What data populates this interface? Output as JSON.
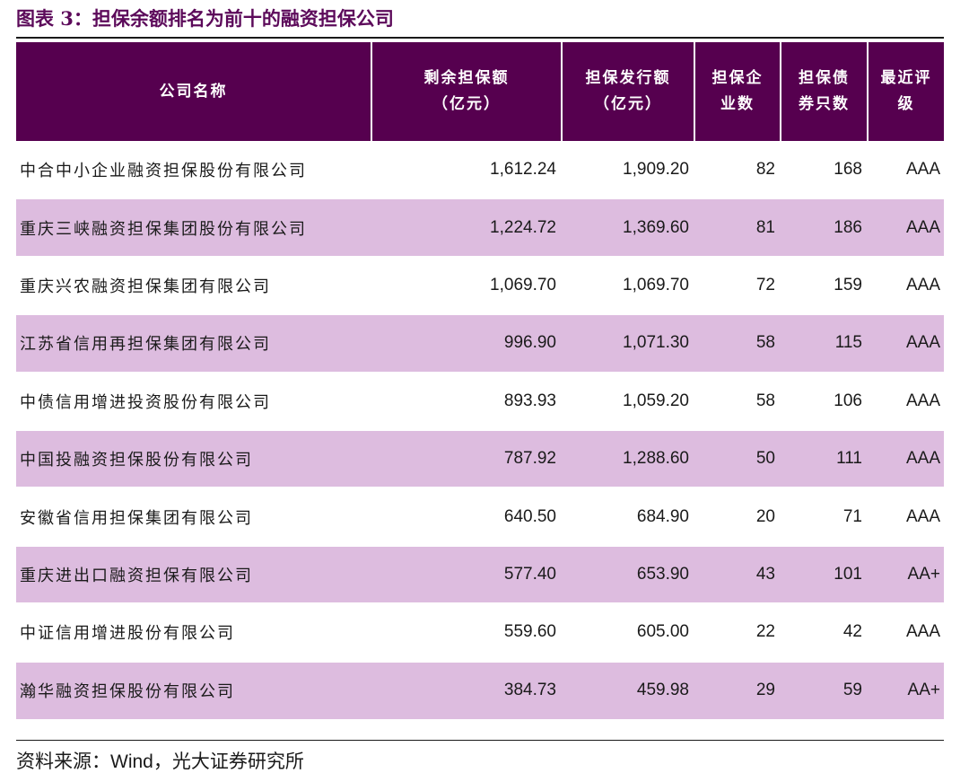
{
  "title": "图表 3：担保余额排名为前十的融资担保公司",
  "header": {
    "company": "公司名称",
    "remaining_l1": "剩余担保额",
    "remaining_l2": "（亿元）",
    "issued_l1": "担保发行额",
    "issued_l2": "（亿元）",
    "corp_count_l1": "担保企",
    "corp_count_l2": "业数",
    "bond_count_l1": "担保债",
    "bond_count_l2": "券只数",
    "rating_l1": "最近评",
    "rating_l2": "级"
  },
  "rows": [
    {
      "company": "中合中小企业融资担保股份有限公司",
      "remaining": "1,612.24",
      "issued": "1,909.20",
      "corp_count": "82",
      "bond_count": "168",
      "rating": "AAA"
    },
    {
      "company": "重庆三峡融资担保集团股份有限公司",
      "remaining": "1,224.72",
      "issued": "1,369.60",
      "corp_count": "81",
      "bond_count": "186",
      "rating": "AAA"
    },
    {
      "company": "重庆兴农融资担保集团有限公司",
      "remaining": "1,069.70",
      "issued": "1,069.70",
      "corp_count": "72",
      "bond_count": "159",
      "rating": "AAA"
    },
    {
      "company": "江苏省信用再担保集团有限公司",
      "remaining": "996.90",
      "issued": "1,071.30",
      "corp_count": "58",
      "bond_count": "115",
      "rating": "AAA"
    },
    {
      "company": "中债信用增进投资股份有限公司",
      "remaining": "893.93",
      "issued": "1,059.20",
      "corp_count": "58",
      "bond_count": "106",
      "rating": "AAA"
    },
    {
      "company": "中国投融资担保股份有限公司",
      "remaining": "787.92",
      "issued": "1,288.60",
      "corp_count": "50",
      "bond_count": "111",
      "rating": "AAA"
    },
    {
      "company": "安徽省信用担保集团有限公司",
      "remaining": "640.50",
      "issued": "684.90",
      "corp_count": "20",
      "bond_count": "71",
      "rating": "AAA"
    },
    {
      "company": "重庆进出口融资担保有限公司",
      "remaining": "577.40",
      "issued": "653.90",
      "corp_count": "43",
      "bond_count": "101",
      "rating": "AA+"
    },
    {
      "company": "中证信用增进股份有限公司",
      "remaining": "559.60",
      "issued": "605.00",
      "corp_count": "22",
      "bond_count": "42",
      "rating": "AAA"
    },
    {
      "company": "瀚华融资担保股份有限公司",
      "remaining": "384.73",
      "issued": "459.98",
      "corp_count": "29",
      "bond_count": "59",
      "rating": "AA+"
    }
  ],
  "source": {
    "prefix": "资料来源：",
    "provider": "Wind",
    "suffix": "，光大证券研究所"
  },
  "colors": {
    "title": "#5c0a5a",
    "header_bg": "#56004f",
    "alt_row_bg": "#ddbcdf"
  }
}
